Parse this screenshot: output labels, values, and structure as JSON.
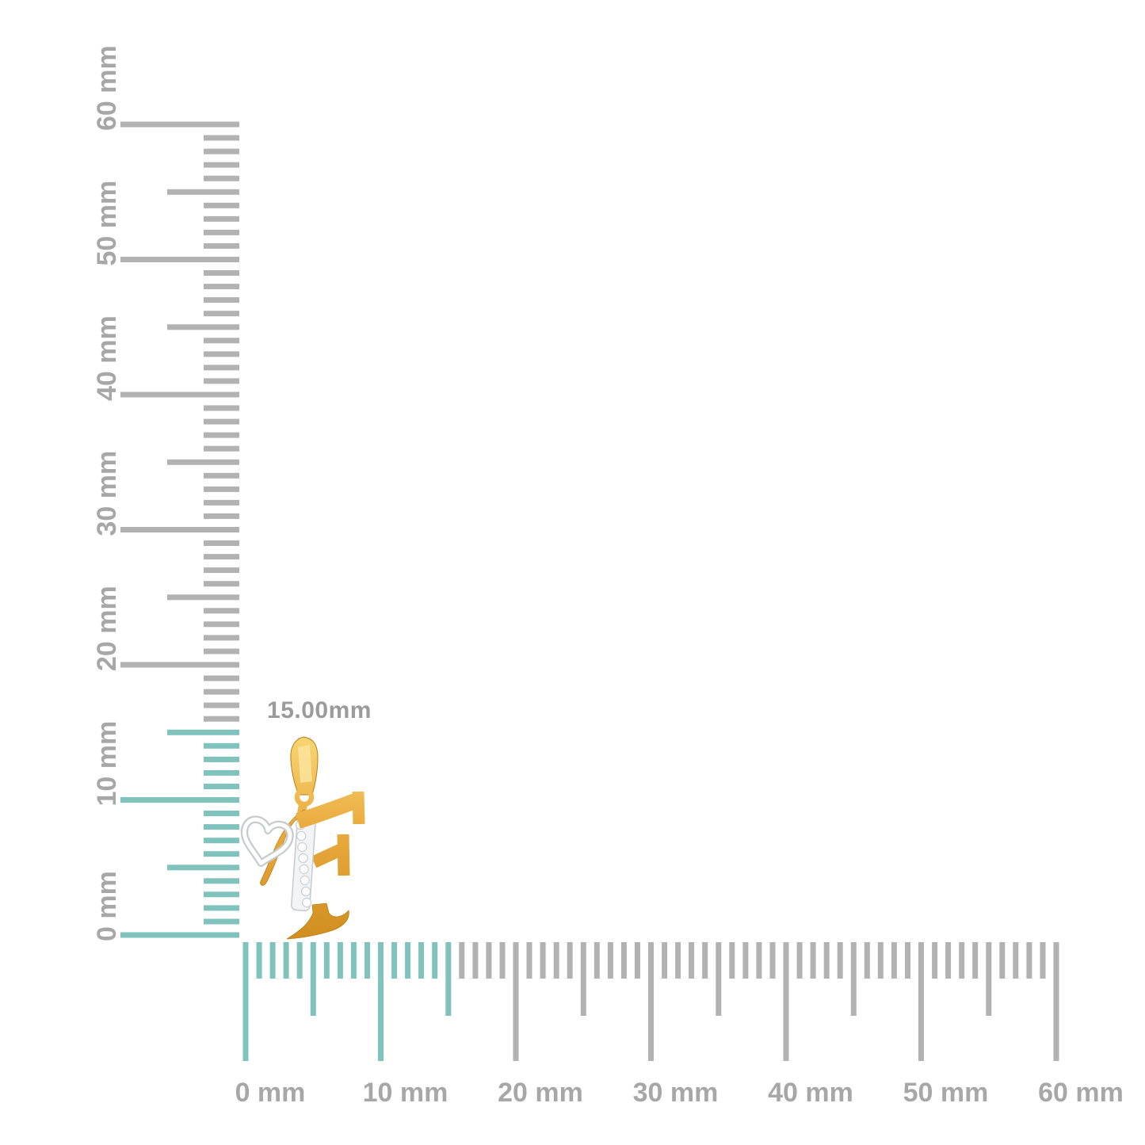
{
  "measurement": {
    "label": "15.00mm"
  },
  "rulers": {
    "unit": "mm",
    "min_mm": 0,
    "max_mm": 60,
    "minor_step_mm": 1,
    "medium_step_mm": 5,
    "major_step_mm": 10,
    "highlight_until_mm": 15,
    "vertical_labels": [
      "0 mm",
      "10 mm",
      "20 mm",
      "30 mm",
      "40 mm",
      "50 mm",
      "60 mm"
    ],
    "horizontal_labels": [
      "0 mm",
      "10 mm",
      "20 mm",
      "30 mm",
      "40 mm",
      "50 mm",
      "60 mm"
    ]
  },
  "colors": {
    "background": "#ffffff",
    "tick_gray": "#b2b2b2",
    "label_gray": "#a7a7a7",
    "highlight_teal": "#7fc3bc",
    "measurement_label_gray": "#9b9b9b"
  },
  "pendant": {
    "name": "initial-f-heart-diamond-pendant",
    "colors": {
      "gold_light": "#f8d776",
      "gold_mid": "#eaaa3e",
      "gold_dark": "#cf8c1e",
      "gold_edge": "#b97f15",
      "gold_facet": "#fae49c",
      "white_metal": "#f3f4f5",
      "white_metal_outline": "#c5cad0",
      "diamond_fill": "#fcfcfd",
      "diamond_stroke": "#ccd1d6",
      "heart_outline": "#c7cbce",
      "heart_inner": "#fefefe"
    }
  }
}
